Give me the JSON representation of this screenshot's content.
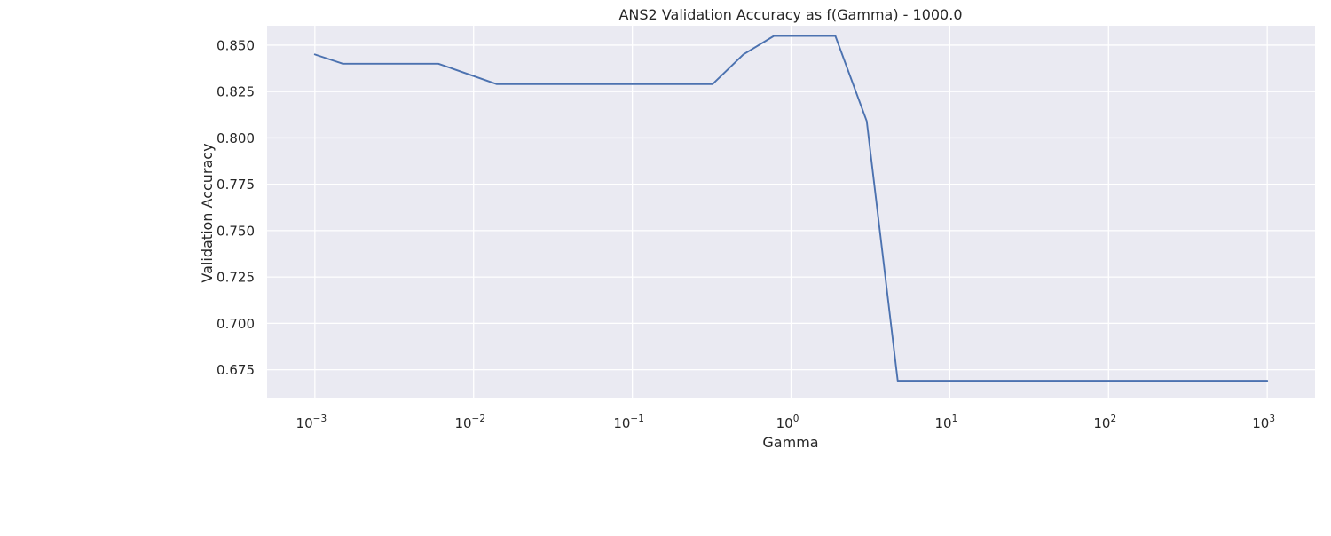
{
  "chart_data": {
    "type": "line",
    "title": "ANS2 Validation Accuracy as f(Gamma) - 1000.0",
    "xlabel": "Gamma",
    "ylabel": "Validation Accuracy",
    "x_scale": "log",
    "xlim": [
      0.0005,
      2000
    ],
    "ylim": [
      0.6595,
      0.8605
    ],
    "grid": true,
    "background_color": "#eaeaf2",
    "grid_color": "#ffffff",
    "line_color": "#4c72b0",
    "x_ticks": [
      {
        "base": "10",
        "exp": "−3"
      },
      {
        "base": "10",
        "exp": "−2"
      },
      {
        "base": "10",
        "exp": "−1"
      },
      {
        "base": "10",
        "exp": "0"
      },
      {
        "base": "10",
        "exp": "1"
      },
      {
        "base": "10",
        "exp": "2"
      },
      {
        "base": "10",
        "exp": "3"
      }
    ],
    "y_ticks": [
      "0.675",
      "0.700",
      "0.725",
      "0.750",
      "0.775",
      "0.800",
      "0.825",
      "0.850"
    ],
    "series": [
      {
        "x": [
          0.001,
          0.0015,
          0.006,
          0.014,
          0.32,
          0.5,
          0.78,
          1.9,
          3.0,
          4.7,
          1000
        ],
        "y": [
          0.845,
          0.84,
          0.84,
          0.829,
          0.829,
          0.845,
          0.855,
          0.855,
          0.809,
          0.669,
          0.669
        ]
      }
    ]
  }
}
